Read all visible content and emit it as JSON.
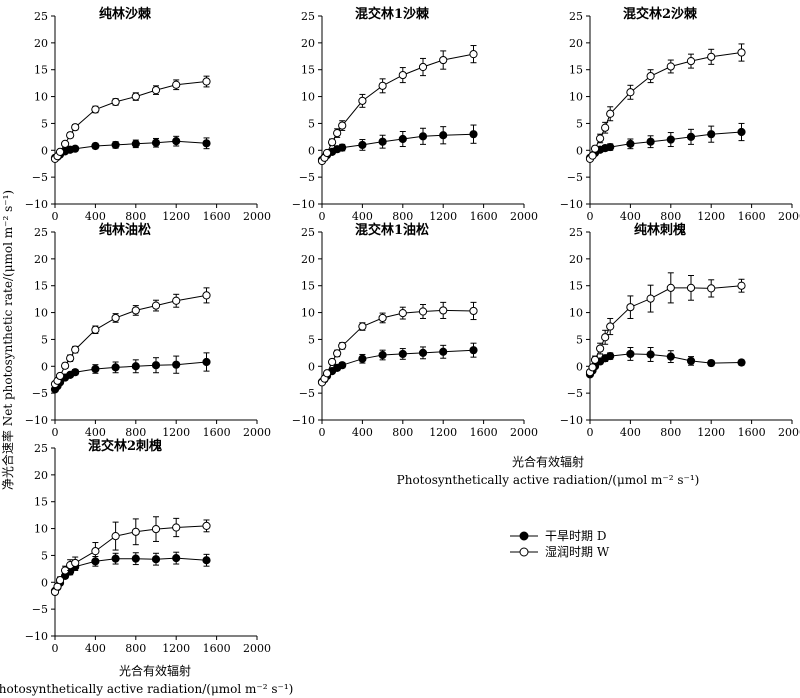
{
  "figure": {
    "y_axis_label": "净光合速率 Net photosynthetic rate/(μmol m⁻² s⁻¹)",
    "x_axis_label_cn": "光合有效辐射",
    "x_axis_label_en": "Photosynthetically active radiation/(μmol m⁻² s⁻¹)",
    "legend": [
      {
        "label": "干旱时期 D",
        "marker": "filled"
      },
      {
        "label": "湿润时期 W",
        "marker": "open"
      }
    ]
  },
  "chart_data": [
    {
      "type": "line",
      "title": "纯林沙棘",
      "xlim": [
        0,
        2000
      ],
      "ylim": [
        -10,
        25
      ],
      "xticks": [
        0,
        400,
        800,
        1200,
        1600,
        2000
      ],
      "yticks": [
        -10,
        -5,
        0,
        5,
        10,
        15,
        20,
        25
      ],
      "x": [
        0,
        25,
        50,
        100,
        150,
        200,
        400,
        600,
        800,
        1000,
        1200,
        1500
      ],
      "series": [
        {
          "name": "干旱时期 D",
          "marker": "filled",
          "values": [
            -1.4,
            -1.2,
            -0.8,
            -0.2,
            0.1,
            0.3,
            0.8,
            1.0,
            1.2,
            1.4,
            1.7,
            1.3
          ],
          "errors": [
            0.2,
            0.2,
            0.2,
            0.3,
            0.3,
            0.3,
            0.5,
            0.6,
            0.7,
            0.8,
            0.9,
            1.0
          ]
        },
        {
          "name": "湿润时期 W",
          "marker": "open",
          "values": [
            -1.6,
            -1.1,
            -0.3,
            1.2,
            2.8,
            4.3,
            7.6,
            9.0,
            10.0,
            11.2,
            12.2,
            12.8
          ],
          "errors": [
            0.2,
            0.2,
            0.3,
            0.4,
            0.5,
            0.5,
            0.6,
            0.6,
            0.7,
            0.8,
            0.9,
            1.0
          ]
        }
      ]
    },
    {
      "type": "line",
      "title": "混交林1沙棘",
      "xlim": [
        0,
        2000
      ],
      "ylim": [
        -10,
        25
      ],
      "xticks": [
        0,
        400,
        800,
        1200,
        1600,
        2000
      ],
      "yticks": [
        -10,
        -5,
        0,
        5,
        10,
        15,
        20,
        25
      ],
      "x": [
        0,
        25,
        50,
        100,
        150,
        200,
        400,
        600,
        800,
        1000,
        1200,
        1500
      ],
      "series": [
        {
          "name": "干旱时期 D",
          "marker": "filled",
          "values": [
            -1.8,
            -1.3,
            -0.9,
            -0.3,
            0.2,
            0.5,
            1.0,
            1.6,
            2.1,
            2.6,
            2.8,
            3.0
          ],
          "errors": [
            0.3,
            0.3,
            0.3,
            0.4,
            0.5,
            0.6,
            1.0,
            1.2,
            1.4,
            1.5,
            1.6,
            1.7
          ]
        },
        {
          "name": "湿润时期 W",
          "marker": "open",
          "values": [
            -2.0,
            -1.4,
            -0.5,
            1.5,
            3.2,
            4.6,
            9.2,
            12.0,
            14.0,
            15.5,
            16.8,
            17.9
          ],
          "errors": [
            0.3,
            0.3,
            0.4,
            0.6,
            0.8,
            0.9,
            1.2,
            1.3,
            1.4,
            1.6,
            1.7,
            1.6
          ]
        }
      ]
    },
    {
      "type": "line",
      "title": "混交林2沙棘",
      "xlim": [
        0,
        2000
      ],
      "ylim": [
        -10,
        25
      ],
      "xticks": [
        0,
        400,
        800,
        1200,
        1600,
        2000
      ],
      "yticks": [
        -10,
        -5,
        0,
        5,
        10,
        15,
        20,
        25
      ],
      "x": [
        0,
        25,
        50,
        100,
        150,
        200,
        400,
        600,
        800,
        1000,
        1200,
        1500
      ],
      "series": [
        {
          "name": "干旱时期 D",
          "marker": "filled",
          "values": [
            -1.4,
            -1.0,
            -0.5,
            0.1,
            0.4,
            0.6,
            1.2,
            1.6,
            2.0,
            2.5,
            3.0,
            3.4
          ],
          "errors": [
            0.3,
            0.3,
            0.3,
            0.4,
            0.5,
            0.6,
            0.9,
            1.1,
            1.3,
            1.4,
            1.5,
            1.6
          ]
        },
        {
          "name": "湿润时期 W",
          "marker": "open",
          "values": [
            -1.6,
            -1.0,
            0.3,
            2.2,
            4.2,
            6.8,
            10.8,
            13.8,
            15.6,
            16.6,
            17.4,
            18.2
          ],
          "errors": [
            0.3,
            0.3,
            0.5,
            0.8,
            1.0,
            1.3,
            1.3,
            1.2,
            1.2,
            1.3,
            1.4,
            1.6
          ]
        }
      ]
    },
    {
      "type": "line",
      "title": "纯林油松",
      "xlim": [
        0,
        2000
      ],
      "ylim": [
        -10,
        25
      ],
      "xticks": [
        0,
        400,
        800,
        1200,
        1600,
        2000
      ],
      "yticks": [
        -10,
        -5,
        0,
        5,
        10,
        15,
        20,
        25
      ],
      "x": [
        0,
        25,
        50,
        100,
        150,
        200,
        400,
        600,
        800,
        1000,
        1200,
        1500
      ],
      "series": [
        {
          "name": "干旱时期 D",
          "marker": "filled",
          "values": [
            -4.3,
            -3.7,
            -3.0,
            -2.1,
            -1.6,
            -1.1,
            -0.5,
            -0.2,
            0.0,
            0.2,
            0.3,
            0.8
          ],
          "errors": [
            0.3,
            0.3,
            0.3,
            0.4,
            0.4,
            0.5,
            0.8,
            1.0,
            1.2,
            1.4,
            1.6,
            1.7
          ]
        },
        {
          "name": "湿润时期 W",
          "marker": "open",
          "values": [
            -3.3,
            -2.7,
            -1.8,
            0.1,
            1.5,
            3.1,
            6.8,
            9.0,
            10.4,
            11.3,
            12.2,
            13.2
          ],
          "errors": [
            0.3,
            0.3,
            0.4,
            0.5,
            0.6,
            0.6,
            0.7,
            0.8,
            0.9,
            1.0,
            1.2,
            1.4
          ]
        }
      ]
    },
    {
      "type": "line",
      "title": "混交林1油松",
      "xlim": [
        0,
        2000
      ],
      "ylim": [
        -10,
        25
      ],
      "xticks": [
        0,
        400,
        800,
        1200,
        1600,
        2000
      ],
      "yticks": [
        -10,
        -5,
        0,
        5,
        10,
        15,
        20,
        25
      ],
      "x": [
        0,
        25,
        50,
        100,
        150,
        200,
        400,
        600,
        800,
        1000,
        1200,
        1500
      ],
      "series": [
        {
          "name": "干旱时期 D",
          "marker": "filled",
          "values": [
            -2.9,
            -2.4,
            -1.8,
            -0.9,
            -0.3,
            0.2,
            1.4,
            2.1,
            2.3,
            2.5,
            2.7,
            3.0
          ],
          "errors": [
            0.3,
            0.3,
            0.3,
            0.4,
            0.5,
            0.5,
            0.8,
            0.9,
            1.0,
            1.1,
            1.2,
            1.3
          ]
        },
        {
          "name": "湿润时期 W",
          "marker": "open",
          "values": [
            -3.0,
            -2.3,
            -1.3,
            0.8,
            2.4,
            3.8,
            7.4,
            9.0,
            9.9,
            10.2,
            10.4,
            10.3
          ],
          "errors": [
            0.3,
            0.3,
            0.4,
            0.5,
            0.6,
            0.6,
            0.7,
            0.9,
            1.1,
            1.3,
            1.5,
            1.6
          ]
        }
      ]
    },
    {
      "type": "line",
      "title": "纯林刺槐",
      "xlim": [
        0,
        2000
      ],
      "ylim": [
        -10,
        25
      ],
      "xticks": [
        0,
        400,
        800,
        1200,
        1600,
        2000
      ],
      "yticks": [
        -10,
        -5,
        0,
        5,
        10,
        15,
        20,
        25
      ],
      "x": [
        0,
        25,
        50,
        100,
        150,
        200,
        400,
        600,
        800,
        1000,
        1200,
        1500
      ],
      "series": [
        {
          "name": "干旱时期 D",
          "marker": "filled",
          "values": [
            -1.5,
            -0.8,
            0.0,
            0.9,
            1.5,
            1.9,
            2.3,
            2.2,
            1.8,
            1.0,
            0.6,
            0.7
          ],
          "errors": [
            0.4,
            0.4,
            0.4,
            0.5,
            0.6,
            0.6,
            1.2,
            1.3,
            1.1,
            0.8,
            0.5,
            0.5
          ]
        },
        {
          "name": "湿润时期 W",
          "marker": "open",
          "values": [
            -1.1,
            -0.2,
            1.2,
            3.3,
            5.4,
            7.4,
            11.0,
            12.6,
            14.6,
            14.6,
            14.5,
            15.0
          ],
          "errors": [
            0.4,
            0.5,
            0.7,
            1.0,
            1.3,
            1.5,
            2.1,
            2.5,
            2.8,
            2.3,
            1.6,
            1.2
          ]
        }
      ]
    },
    {
      "type": "line",
      "title": "混交林2刺槐",
      "xlim": [
        0,
        2000
      ],
      "ylim": [
        -10,
        25
      ],
      "xticks": [
        0,
        400,
        800,
        1200,
        1600,
        2000
      ],
      "yticks": [
        -10,
        -5,
        0,
        5,
        10,
        15,
        20,
        25
      ],
      "x": [
        0,
        25,
        50,
        100,
        150,
        200,
        400,
        600,
        800,
        1000,
        1200,
        1500
      ],
      "series": [
        {
          "name": "干旱时期 D",
          "marker": "filled",
          "values": [
            -1.6,
            -0.9,
            -0.1,
            1.2,
            2.0,
            2.9,
            3.9,
            4.4,
            4.4,
            4.3,
            4.5,
            4.1
          ],
          "errors": [
            0.3,
            0.4,
            0.4,
            0.5,
            0.6,
            0.7,
            0.9,
            1.0,
            1.1,
            1.1,
            1.1,
            1.1
          ]
        },
        {
          "name": "湿润时期 W",
          "marker": "open",
          "values": [
            -1.8,
            -0.8,
            0.4,
            2.2,
            3.2,
            3.6,
            5.8,
            8.6,
            9.4,
            9.9,
            10.2,
            10.5
          ],
          "errors": [
            0.4,
            0.5,
            0.6,
            0.8,
            1.0,
            1.1,
            1.6,
            2.6,
            2.4,
            2.3,
            1.7,
            1.1
          ]
        }
      ]
    }
  ]
}
